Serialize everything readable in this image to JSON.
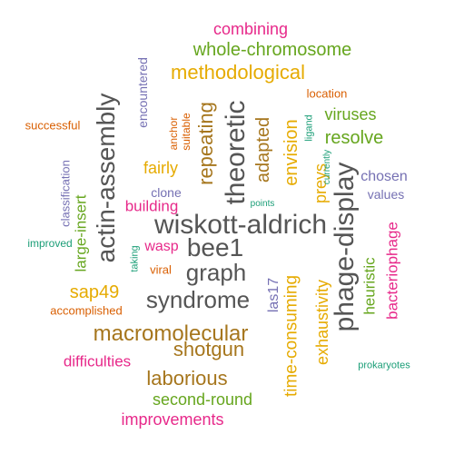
{
  "palette": {
    "gray": "#555555",
    "orange": "#d95f02",
    "gold": "#e6ab02",
    "olive": "#a6761d",
    "green": "#66a61e",
    "pink": "#e7298a",
    "purple": "#7570b3",
    "teal": "#1b9e77"
  },
  "words": [
    {
      "text": "wiskott-aldrich",
      "color": "gray"
    },
    {
      "text": "phage-display",
      "color": "gray"
    },
    {
      "text": "actin-assembly",
      "color": "gray"
    },
    {
      "text": "theoretic",
      "color": "gray"
    },
    {
      "text": "macromolecular",
      "color": "olive"
    },
    {
      "text": "syndrome",
      "color": "gray"
    },
    {
      "text": "graph",
      "color": "gray"
    },
    {
      "text": "bee1",
      "color": "gray"
    },
    {
      "text": "repeating",
      "color": "olive"
    },
    {
      "text": "time-consuming",
      "color": "gold"
    },
    {
      "text": "methodological",
      "color": "gold"
    },
    {
      "text": "whole-chromosome",
      "color": "green"
    },
    {
      "text": "laborious",
      "color": "olive"
    },
    {
      "text": "shotgun",
      "color": "olive"
    },
    {
      "text": "adapted",
      "color": "olive"
    },
    {
      "text": "envision",
      "color": "gold"
    },
    {
      "text": "exhaustivity",
      "color": "gold"
    },
    {
      "text": "combining",
      "color": "pink"
    },
    {
      "text": "improvements",
      "color": "pink"
    },
    {
      "text": "second-round",
      "color": "green"
    },
    {
      "text": "resolve",
      "color": "green"
    },
    {
      "text": "viruses",
      "color": "green"
    },
    {
      "text": "sap49",
      "color": "gold"
    },
    {
      "text": "fairly",
      "color": "gold"
    },
    {
      "text": "large-insert",
      "color": "green"
    },
    {
      "text": "difficulties",
      "color": "pink"
    },
    {
      "text": "heuristic",
      "color": "green"
    },
    {
      "text": "bacteriophage",
      "color": "pink"
    },
    {
      "text": "preys",
      "color": "gold"
    },
    {
      "text": "chosen",
      "color": "purple"
    },
    {
      "text": "building",
      "color": "pink"
    },
    {
      "text": "wasp",
      "color": "pink"
    },
    {
      "text": "las17",
      "color": "purple"
    },
    {
      "text": "encountered",
      "color": "purple"
    },
    {
      "text": "classification",
      "color": "purple"
    },
    {
      "text": "values",
      "color": "purple"
    },
    {
      "text": "clone",
      "color": "purple"
    },
    {
      "text": "accomplished",
      "color": "orange"
    },
    {
      "text": "successful",
      "color": "orange"
    },
    {
      "text": "location",
      "color": "orange"
    },
    {
      "text": "anchor",
      "color": "orange"
    },
    {
      "text": "suitable",
      "color": "orange"
    },
    {
      "text": "viral",
      "color": "orange"
    },
    {
      "text": "improved",
      "color": "teal"
    },
    {
      "text": "ligand",
      "color": "teal"
    },
    {
      "text": "currently",
      "color": "teal"
    },
    {
      "text": "points",
      "color": "teal"
    },
    {
      "text": "taking",
      "color": "teal"
    },
    {
      "text": "prokaryotes",
      "color": "teal"
    }
  ]
}
